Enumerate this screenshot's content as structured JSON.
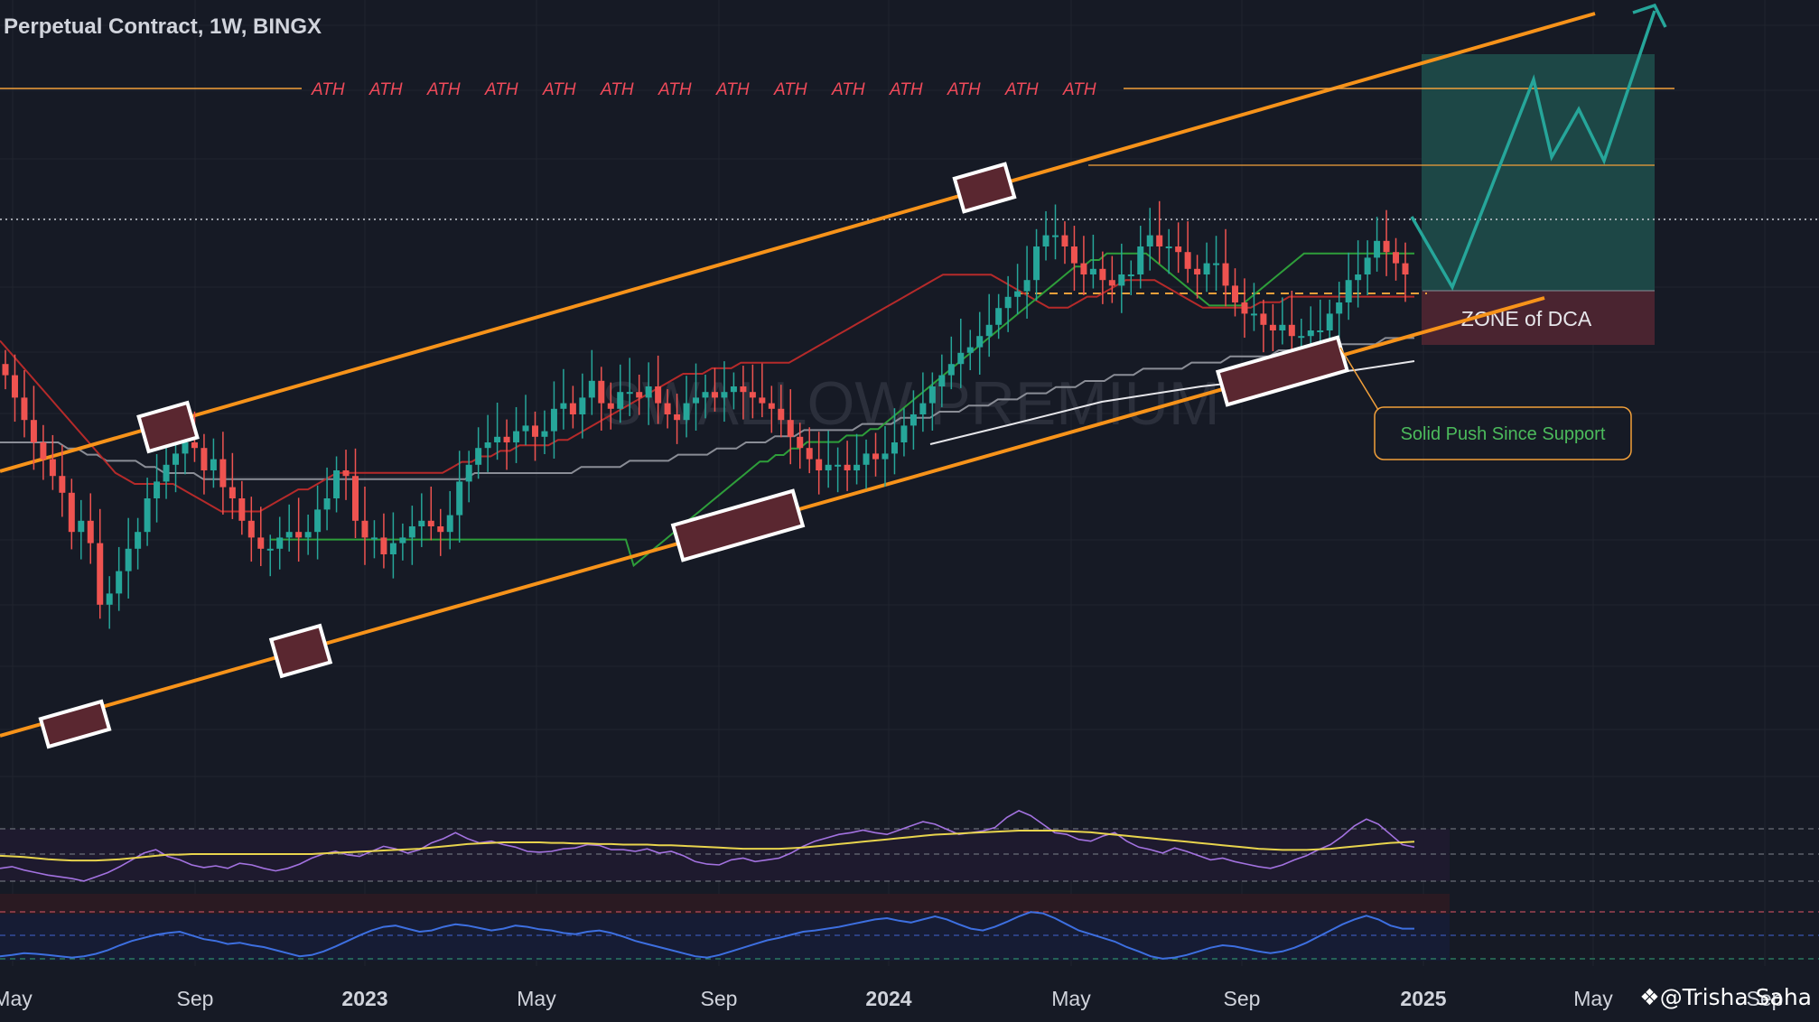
{
  "header": {
    "title": "Perpetual Contract, 1W, BINGX"
  },
  "credit": "@Trisha Saha",
  "chart_data": {
    "type": "candlestick",
    "interval": "1W",
    "x_axis_labels": [
      "May",
      "Sep",
      "2023",
      "May",
      "Sep",
      "2024",
      "May",
      "Sep",
      "2025",
      "May",
      "Sep"
    ],
    "price_grid": true,
    "ath_label": "ATH",
    "ath_label_count": 14,
    "watermark": "SWALLOW PREMIUM",
    "annotations": {
      "dca_zone": "ZONE of DCA",
      "support_callout": "Solid Push Since Support"
    },
    "series": [
      {
        "name": "price",
        "kind": "candles",
        "values": [
          0.62,
          0.58,
          0.54,
          0.5,
          0.47,
          0.44,
          0.41,
          0.34,
          0.36,
          0.32,
          0.21,
          0.23,
          0.27,
          0.31,
          0.34,
          0.4,
          0.43,
          0.46,
          0.48,
          0.5,
          0.49,
          0.45,
          0.47,
          0.42,
          0.4,
          0.36,
          0.33,
          0.31,
          0.31,
          0.33,
          0.34,
          0.33,
          0.34,
          0.38,
          0.4,
          0.45,
          0.44,
          0.36,
          0.33,
          0.33,
          0.3,
          0.32,
          0.33,
          0.35,
          0.36,
          0.35,
          0.34,
          0.37,
          0.43,
          0.46,
          0.49,
          0.5,
          0.51,
          0.5,
          0.52,
          0.53,
          0.51,
          0.52,
          0.56,
          0.57,
          0.55,
          0.58,
          0.61,
          0.57,
          0.56,
          0.59,
          0.59,
          0.58,
          0.6,
          0.57,
          0.55,
          0.54,
          0.57,
          0.58,
          0.59,
          0.58,
          0.59,
          0.6,
          0.59,
          0.58,
          0.57,
          0.56,
          0.54,
          0.51,
          0.49,
          0.47,
          0.45,
          0.46,
          0.46,
          0.45,
          0.46,
          0.48,
          0.47,
          0.48,
          0.5,
          0.53,
          0.55,
          0.57,
          0.6,
          0.62,
          0.64,
          0.66,
          0.67,
          0.69,
          0.71,
          0.74,
          0.76,
          0.77,
          0.79,
          0.85,
          0.87,
          0.87,
          0.85,
          0.82,
          0.8,
          0.81,
          0.79,
          0.78,
          0.8,
          0.8,
          0.85,
          0.87,
          0.85,
          0.85,
          0.84,
          0.81,
          0.8,
          0.82,
          0.82,
          0.78,
          0.75,
          0.73,
          0.73,
          0.71,
          0.7,
          0.71,
          0.69,
          0.69,
          0.7,
          0.7,
          0.73,
          0.75,
          0.79,
          0.8,
          0.83,
          0.86,
          0.84,
          0.82,
          0.8
        ]
      },
      {
        "name": "ma_red",
        "color": "#b52a2a",
        "values": [
          0.66,
          0.64,
          0.62,
          0.6,
          0.58,
          0.56,
          0.54,
          0.52,
          0.5,
          0.48,
          0.46,
          0.44,
          0.42,
          0.41,
          0.4,
          0.4,
          0.4,
          0.4,
          0.4,
          0.39,
          0.38,
          0.37,
          0.36,
          0.35,
          0.35,
          0.35,
          0.35,
          0.35,
          0.36,
          0.37,
          0.38,
          0.39,
          0.39,
          0.4,
          0.41,
          0.42,
          0.42,
          0.42,
          0.42,
          0.42,
          0.42,
          0.42,
          0.42,
          0.42,
          0.42,
          0.42,
          0.42,
          0.43,
          0.44,
          0.44,
          0.45,
          0.45,
          0.46,
          0.46,
          0.47,
          0.47,
          0.47,
          0.47,
          0.48,
          0.48,
          0.49,
          0.5,
          0.51,
          0.52,
          0.53,
          0.54,
          0.55,
          0.56,
          0.57,
          0.58,
          0.59,
          0.6,
          0.6,
          0.6,
          0.61,
          0.61,
          0.61,
          0.62,
          0.62,
          0.62,
          0.62,
          0.62,
          0.62,
          0.63,
          0.64,
          0.65,
          0.66,
          0.67,
          0.68,
          0.69,
          0.7,
          0.71,
          0.72,
          0.73,
          0.74,
          0.75,
          0.76,
          0.77,
          0.78,
          0.78,
          0.78,
          0.78,
          0.78,
          0.78,
          0.77,
          0.76,
          0.75,
          0.74,
          0.73,
          0.72,
          0.72,
          0.72,
          0.73,
          0.74,
          0.74,
          0.75,
          0.76,
          0.77,
          0.77,
          0.77,
          0.77,
          0.76,
          0.75,
          0.74,
          0.73,
          0.72,
          0.72,
          0.72,
          0.72,
          0.72,
          0.72,
          0.73,
          0.73,
          0.73,
          0.74,
          0.74,
          0.74,
          0.74,
          0.74,
          0.74,
          0.74,
          0.74,
          0.74,
          0.74,
          0.74,
          0.74,
          0.74,
          0.74
        ]
      },
      {
        "name": "ma_green",
        "color": "#2e9e3a",
        "values": [
          0.42,
          0.42,
          0.42,
          0.42,
          0.42,
          0.42,
          0.42,
          0.42,
          0.42,
          0.42,
          0.42,
          0.42,
          0.42,
          0.42,
          0.42,
          0.42,
          0.42,
          0.42,
          0.42,
          0.42,
          0.42,
          0.42,
          0.42,
          0.42,
          0.42,
          0.42,
          0.42,
          0.42,
          0.42,
          0.42,
          0.42,
          0.42,
          0.42,
          0.42,
          0.42,
          0.42,
          0.42,
          0.42,
          0.42,
          0.42,
          0.42,
          0.42,
          0.42,
          0.42,
          0.42,
          0.42,
          0.38,
          0.39,
          0.4,
          0.41,
          0.42,
          0.43,
          0.44,
          0.45,
          0.46,
          0.47,
          0.48,
          0.49,
          0.5,
          0.51,
          0.52,
          0.53,
          0.54,
          0.54,
          0.55,
          0.55,
          0.56,
          0.56,
          0.57,
          0.57,
          0.57,
          0.57,
          0.57,
          0.58,
          0.58,
          0.58,
          0.59,
          0.59,
          0.6,
          0.61,
          0.62,
          0.63,
          0.64,
          0.65,
          0.66,
          0.67,
          0.68,
          0.69,
          0.7,
          0.71,
          0.72,
          0.73,
          0.74,
          0.75,
          0.76,
          0.77,
          0.78,
          0.79,
          0.8,
          0.81,
          0.82,
          0.83,
          0.84,
          0.84,
          0.85,
          0.85,
          0.86,
          0.86,
          0.86,
          0.86,
          0.86,
          0.86,
          0.85,
          0.84,
          0.83,
          0.82,
          0.81,
          0.8,
          0.79,
          0.78,
          0.78,
          0.78,
          0.78,
          0.78,
          0.79,
          0.8,
          0.81,
          0.82,
          0.83,
          0.84,
          0.85,
          0.86,
          0.86,
          0.86,
          0.86,
          0.86,
          0.86,
          0.86,
          0.86,
          0.86,
          0.86,
          0.86,
          0.86,
          0.86,
          0.86,
          0.86
        ]
      },
      {
        "name": "ma_gray",
        "color": "#8a8d96",
        "values": [
          0.5,
          0.5,
          0.5,
          0.5,
          0.5,
          0.5,
          0.5,
          0.49,
          0.49,
          0.48,
          0.48,
          0.47,
          0.47,
          0.47,
          0.47,
          0.46,
          0.46,
          0.45,
          0.45,
          0.45,
          0.45,
          0.44,
          0.44,
          0.44,
          0.44,
          0.44,
          0.44,
          0.44,
          0.44,
          0.44,
          0.44,
          0.44,
          0.44,
          0.44,
          0.44,
          0.44,
          0.44,
          0.44,
          0.44,
          0.44,
          0.44,
          0.44,
          0.44,
          0.44,
          0.44,
          0.44,
          0.44,
          0.44,
          0.44,
          0.45,
          0.45,
          0.45,
          0.45,
          0.45,
          0.45,
          0.45,
          0.45,
          0.45,
          0.45,
          0.45,
          0.46,
          0.46,
          0.46,
          0.46,
          0.46,
          0.47,
          0.47,
          0.47,
          0.47,
          0.47,
          0.48,
          0.48,
          0.48,
          0.48,
          0.49,
          0.49,
          0.49,
          0.5,
          0.5,
          0.5,
          0.51,
          0.51,
          0.51,
          0.52,
          0.52,
          0.52,
          0.52,
          0.52,
          0.52,
          0.53,
          0.53,
          0.53,
          0.53,
          0.54,
          0.54,
          0.54,
          0.54,
          0.55,
          0.55,
          0.55,
          0.56,
          0.56,
          0.56,
          0.57,
          0.57,
          0.57,
          0.58,
          0.58,
          0.58,
          0.59,
          0.59,
          0.59,
          0.6,
          0.6,
          0.6,
          0.61,
          0.61,
          0.61,
          0.62,
          0.62,
          0.62,
          0.62,
          0.62,
          0.63,
          0.63,
          0.63,
          0.63,
          0.64,
          0.64,
          0.64,
          0.64,
          0.64,
          0.65,
          0.65,
          0.65,
          0.65,
          0.65,
          0.65,
          0.66,
          0.66,
          0.66,
          0.66,
          0.66,
          0.67,
          0.67,
          0.67,
          0.67
        ]
      },
      {
        "name": "rsi",
        "color": "#a372e0",
        "values": [
          0.3,
          0.32,
          0.28,
          0.25,
          0.22,
          0.2,
          0.18,
          0.15,
          0.2,
          0.25,
          0.32,
          0.4,
          0.48,
          0.52,
          0.44,
          0.4,
          0.34,
          0.31,
          0.33,
          0.3,
          0.36,
          0.34,
          0.3,
          0.27,
          0.3,
          0.35,
          0.42,
          0.47,
          0.5,
          0.46,
          0.44,
          0.5,
          0.56,
          0.53,
          0.48,
          0.52,
          0.6,
          0.65,
          0.72,
          0.65,
          0.6,
          0.62,
          0.58,
          0.55,
          0.5,
          0.49,
          0.5,
          0.53,
          0.54,
          0.58,
          0.57,
          0.52,
          0.52,
          0.5,
          0.53,
          0.48,
          0.5,
          0.45,
          0.38,
          0.35,
          0.34,
          0.4,
          0.42,
          0.38,
          0.4,
          0.42,
          0.48,
          0.56,
          0.62,
          0.66,
          0.7,
          0.72,
          0.75,
          0.72,
          0.7,
          0.75,
          0.8,
          0.85,
          0.82,
          0.76,
          0.7,
          0.72,
          0.74,
          0.78,
          0.9,
          0.98,
          0.92,
          0.82,
          0.72,
          0.7,
          0.64,
          0.62,
          0.68,
          0.72,
          0.62,
          0.55,
          0.52,
          0.48,
          0.54,
          0.5,
          0.45,
          0.4,
          0.42,
          0.38,
          0.35,
          0.32,
          0.3,
          0.34,
          0.4,
          0.45,
          0.52,
          0.58,
          0.68,
          0.8,
          0.88,
          0.82,
          0.7,
          0.58,
          0.55
        ]
      },
      {
        "name": "rsi_ma",
        "color": "#e8d44d",
        "values": [
          0.34,
          0.33,
          0.32,
          0.3,
          0.28,
          0.27,
          0.26,
          0.26,
          0.26,
          0.27,
          0.28,
          0.3,
          0.32,
          0.34,
          0.36,
          0.36,
          0.37,
          0.37,
          0.37,
          0.37,
          0.37,
          0.37,
          0.37,
          0.37,
          0.37,
          0.37,
          0.37,
          0.38,
          0.39,
          0.4,
          0.41,
          0.42,
          0.43,
          0.44,
          0.45,
          0.46,
          0.48,
          0.5,
          0.52,
          0.54,
          0.55,
          0.56,
          0.57,
          0.57,
          0.57,
          0.57,
          0.56,
          0.56,
          0.55,
          0.55,
          0.54,
          0.54,
          0.53,
          0.53,
          0.53,
          0.52,
          0.52,
          0.51,
          0.5,
          0.49,
          0.48,
          0.47,
          0.46,
          0.46,
          0.46,
          0.46,
          0.47,
          0.48,
          0.5,
          0.52,
          0.54,
          0.56,
          0.58,
          0.6,
          0.62,
          0.64,
          0.66,
          0.68,
          0.7,
          0.71,
          0.72,
          0.73,
          0.74,
          0.75,
          0.76,
          0.77,
          0.77,
          0.77,
          0.77,
          0.76,
          0.75,
          0.74,
          0.72,
          0.7,
          0.68,
          0.66,
          0.64,
          0.62,
          0.6,
          0.58,
          0.56,
          0.54,
          0.52,
          0.5,
          0.48,
          0.46,
          0.45,
          0.44,
          0.44,
          0.44,
          0.45,
          0.46,
          0.48,
          0.5,
          0.52,
          0.54,
          0.56,
          0.57,
          0.58
        ]
      },
      {
        "name": "stoch",
        "color": "#3d6fe0",
        "values": [
          0.1,
          0.12,
          0.15,
          0.14,
          0.12,
          0.1,
          0.08,
          0.1,
          0.14,
          0.2,
          0.28,
          0.35,
          0.4,
          0.45,
          0.48,
          0.5,
          0.44,
          0.38,
          0.35,
          0.3,
          0.32,
          0.28,
          0.25,
          0.2,
          0.15,
          0.1,
          0.12,
          0.18,
          0.26,
          0.35,
          0.44,
          0.52,
          0.58,
          0.6,
          0.55,
          0.5,
          0.52,
          0.58,
          0.62,
          0.6,
          0.56,
          0.52,
          0.55,
          0.6,
          0.58,
          0.54,
          0.52,
          0.48,
          0.46,
          0.5,
          0.52,
          0.48,
          0.42,
          0.35,
          0.3,
          0.25,
          0.2,
          0.15,
          0.1,
          0.08,
          0.12,
          0.18,
          0.24,
          0.3,
          0.36,
          0.4,
          0.45,
          0.5,
          0.52,
          0.55,
          0.58,
          0.62,
          0.66,
          0.7,
          0.72,
          0.68,
          0.65,
          0.7,
          0.75,
          0.7,
          0.62,
          0.55,
          0.52,
          0.58,
          0.66,
          0.75,
          0.82,
          0.8,
          0.72,
          0.62,
          0.52,
          0.46,
          0.4,
          0.34,
          0.25,
          0.18,
          0.1,
          0.06,
          0.08,
          0.12,
          0.18,
          0.24,
          0.28,
          0.26,
          0.22,
          0.18,
          0.15,
          0.18,
          0.24,
          0.32,
          0.42,
          0.52,
          0.62,
          0.7,
          0.76,
          0.7,
          0.6,
          0.55,
          0.55
        ]
      }
    ]
  }
}
